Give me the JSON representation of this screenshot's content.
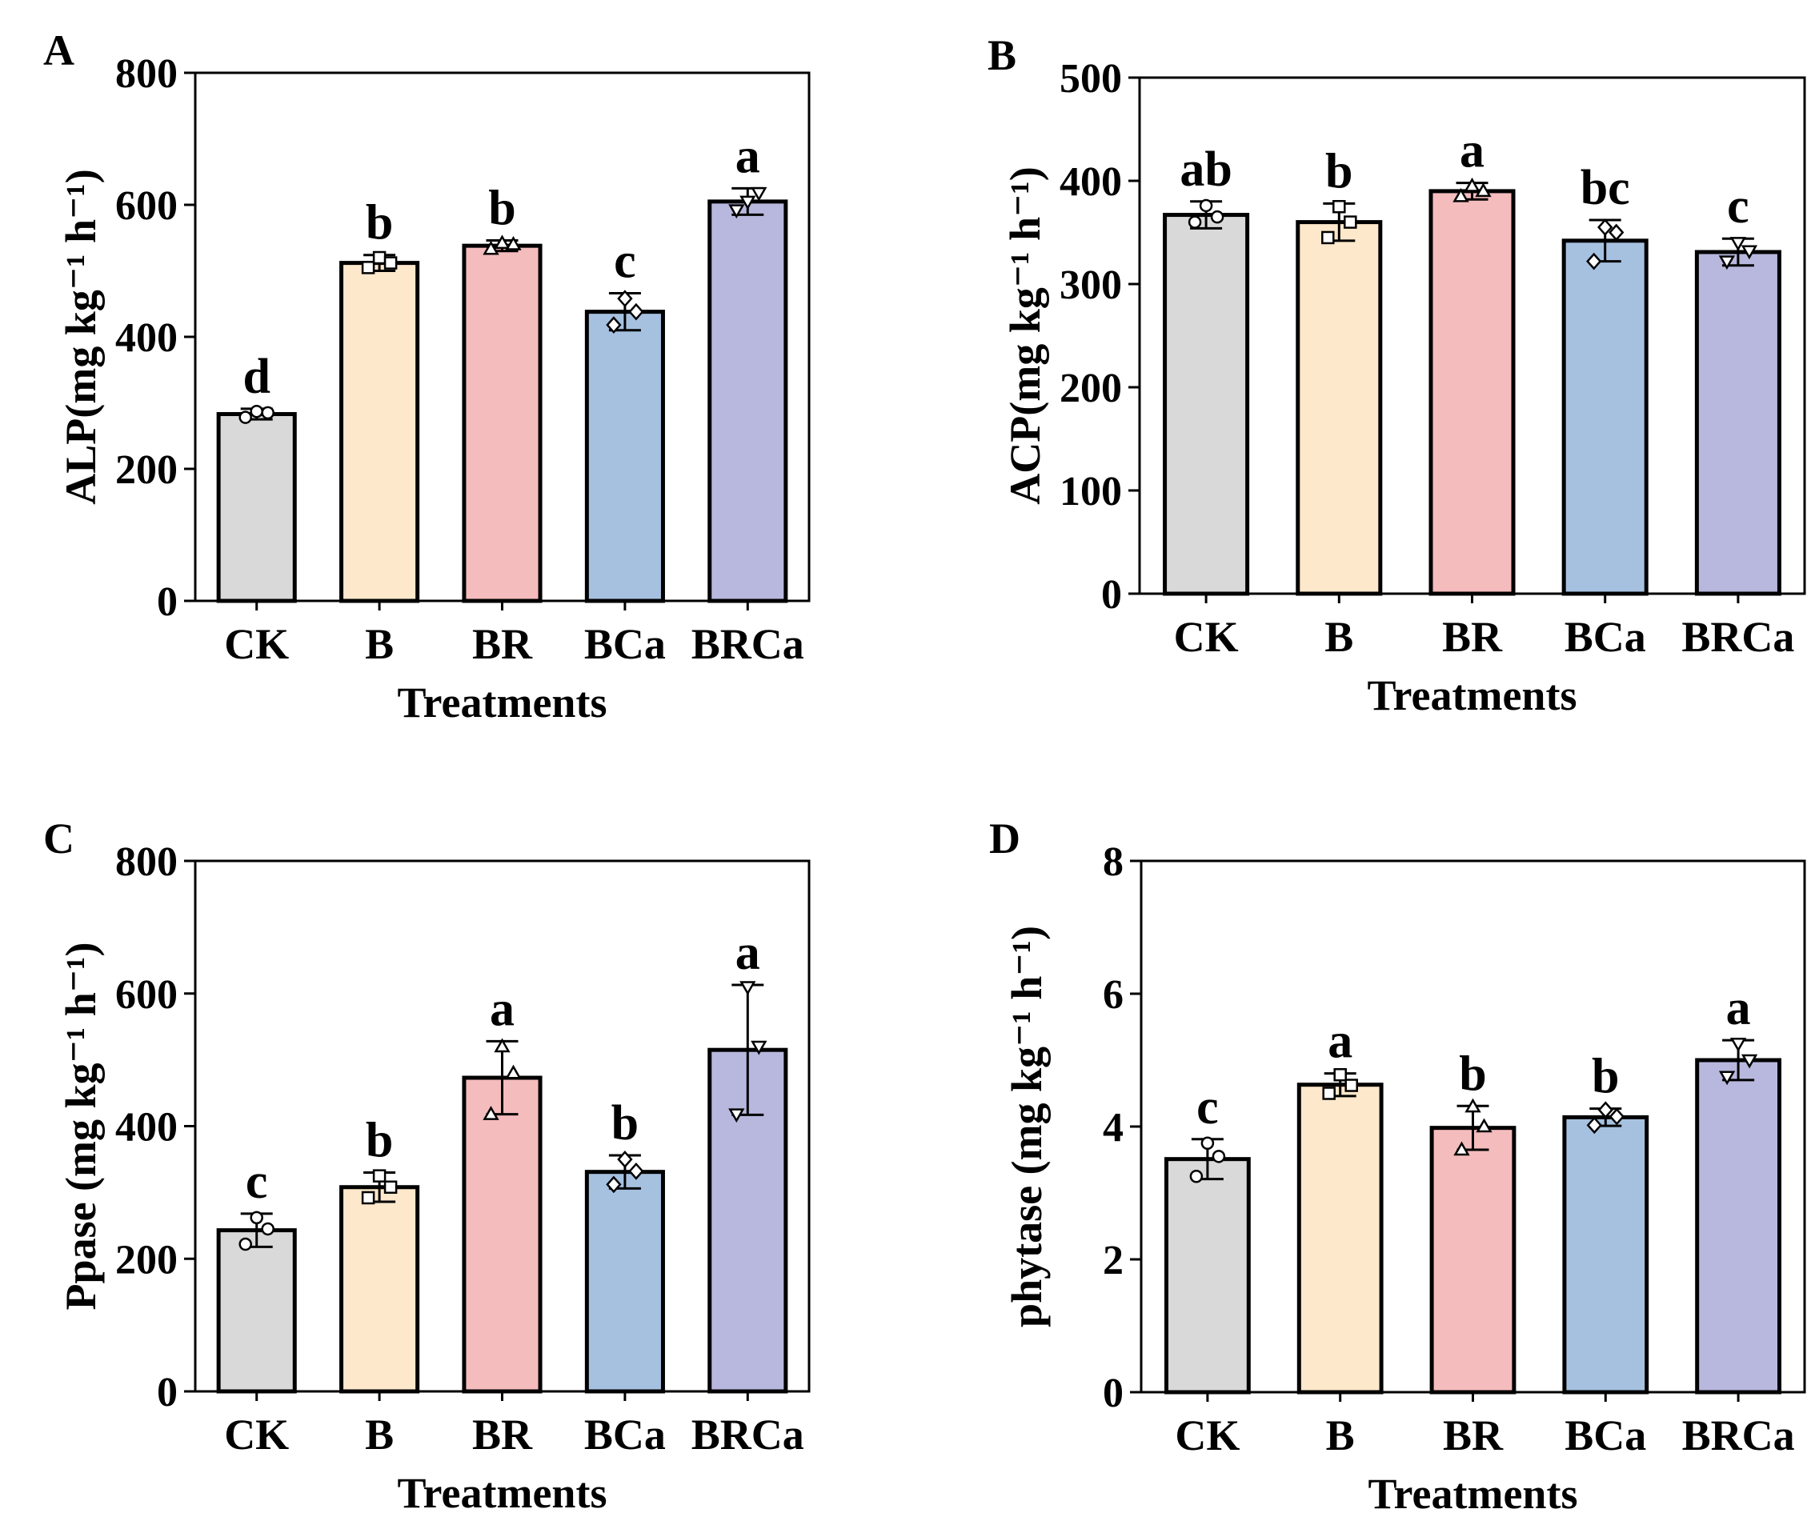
{
  "colors": {
    "CK": "#d9d9d9",
    "B": "#fde8cb",
    "BR": "#f5bcbd",
    "BCa": "#a6c1e0",
    "BRCa": "#b8b8de"
  },
  "chart_data": [
    {
      "type": "bar",
      "panel": "A",
      "title": "",
      "xlabel": "Treatments",
      "ylabel": "ALP(mg kg⁻¹ h⁻¹)",
      "categories": [
        "CK",
        "B",
        "BR",
        "BCa",
        "BRCa"
      ],
      "values": [
        283,
        512,
        538,
        438,
        605
      ],
      "errors": [
        8,
        12,
        8,
        28,
        20
      ],
      "points": [
        [
          278,
          287,
          285
        ],
        [
          505,
          520,
          512
        ],
        [
          533,
          542,
          540
        ],
        [
          418,
          458,
          438
        ],
        [
          592,
          605,
          618
        ]
      ],
      "letters": [
        "d",
        "b",
        "b",
        "c",
        "a"
      ],
      "ylim": [
        0,
        800
      ],
      "yticks": [
        0,
        200,
        400,
        600,
        800
      ],
      "grid": false
    },
    {
      "type": "bar",
      "panel": "B",
      "title": "",
      "xlabel": "Treatments",
      "ylabel": "ACP(mg kg⁻¹ h⁻¹)",
      "categories": [
        "CK",
        "B",
        "BR",
        "BCa",
        "BRCa"
      ],
      "values": [
        367,
        360,
        390,
        342,
        331
      ],
      "errors": [
        13,
        18,
        8,
        20,
        13
      ],
      "points": [
        [
          360,
          376,
          365
        ],
        [
          345,
          375,
          360
        ],
        [
          385,
          395,
          390
        ],
        [
          322,
          355,
          350
        ],
        [
          322,
          340,
          332
        ]
      ],
      "letters": [
        "ab",
        "b",
        "a",
        "bc",
        "c"
      ],
      "ylim": [
        0,
        500
      ],
      "yticks": [
        0,
        100,
        200,
        300,
        400,
        500
      ],
      "grid": false
    },
    {
      "type": "bar",
      "panel": "C",
      "title": "",
      "xlabel": "Treatments",
      "ylabel": "Ppase (mg kg⁻¹ h⁻¹)",
      "categories": [
        "CK",
        "B",
        "BR",
        "BCa",
        "BRCa"
      ],
      "values": [
        243,
        308,
        473,
        331,
        515
      ],
      "errors": [
        25,
        22,
        55,
        25,
        98
      ],
      "points": [
        [
          222,
          262,
          245
        ],
        [
          292,
          325,
          308
        ],
        [
          418,
          520,
          480
        ],
        [
          312,
          350,
          332
        ],
        [
          418,
          610,
          520
        ]
      ],
      "letters": [
        "c",
        "b",
        "a",
        "b",
        "a"
      ],
      "ylim": [
        0,
        800
      ],
      "yticks": [
        0,
        200,
        400,
        600,
        800
      ],
      "grid": false
    },
    {
      "type": "bar",
      "panel": "D",
      "title": "",
      "xlabel": "Treatments",
      "ylabel": "phytase (mg kg⁻¹ h⁻¹)",
      "categories": [
        "CK",
        "B",
        "BR",
        "BCa",
        "BRCa"
      ],
      "values": [
        3.51,
        4.63,
        3.98,
        4.14,
        5.0
      ],
      "errors": [
        0.3,
        0.17,
        0.33,
        0.13,
        0.3
      ],
      "points": [
        [
          3.25,
          3.75,
          3.55
        ],
        [
          4.5,
          4.78,
          4.62
        ],
        [
          3.65,
          4.3,
          4.0
        ],
        [
          4.02,
          4.25,
          4.15
        ],
        [
          4.75,
          5.25,
          5.0
        ]
      ],
      "letters": [
        "c",
        "a",
        "b",
        "b",
        "a"
      ],
      "ylim": [
        0,
        8
      ],
      "yticks": [
        0,
        2,
        4,
        6,
        8
      ],
      "grid": false
    }
  ]
}
